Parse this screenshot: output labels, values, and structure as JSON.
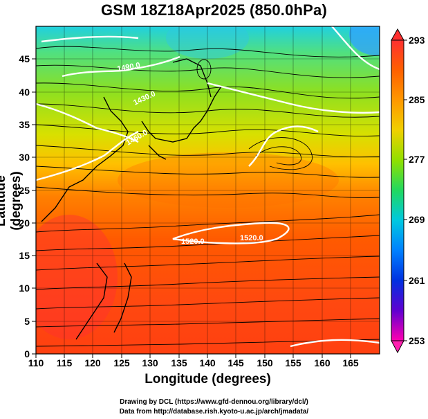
{
  "title": "GSM 18Z18Apr2025 (850.0hPa)",
  "x_axis": {
    "label": "Longitude (degrees)",
    "min": 110,
    "max": 170,
    "ticks": [
      110,
      115,
      120,
      125,
      130,
      135,
      140,
      145,
      150,
      155,
      160,
      165
    ]
  },
  "y_axis": {
    "label": "Latitude  (degrees)",
    "min": 0,
    "max": 50,
    "ticks": [
      0,
      5,
      10,
      15,
      20,
      25,
      30,
      35,
      40,
      45
    ]
  },
  "colorbar": {
    "ticks": [
      "293",
      "285",
      "277",
      "269",
      "261",
      "253"
    ],
    "min": 253,
    "max": 293,
    "colors": [
      "#ff00a0",
      "#c000e0",
      "#4000d0",
      "#0030e0",
      "#0090ff",
      "#00d0e0",
      "#10e070",
      "#40d800",
      "#c0e000",
      "#ffd000",
      "#ff9000",
      "#ff4000",
      "#ff3030"
    ]
  },
  "contour_labels": [
    "1520.0",
    "1520.0",
    "1490.0",
    "1460.0",
    "1430.0"
  ],
  "credits": {
    "line1": "Drawing by DCL (https://www.gfd-dennou.org/library/dcl/)",
    "line2": "Data from http://database.rish.kyoto-u.ac.jp/arch/jmadata/"
  }
}
